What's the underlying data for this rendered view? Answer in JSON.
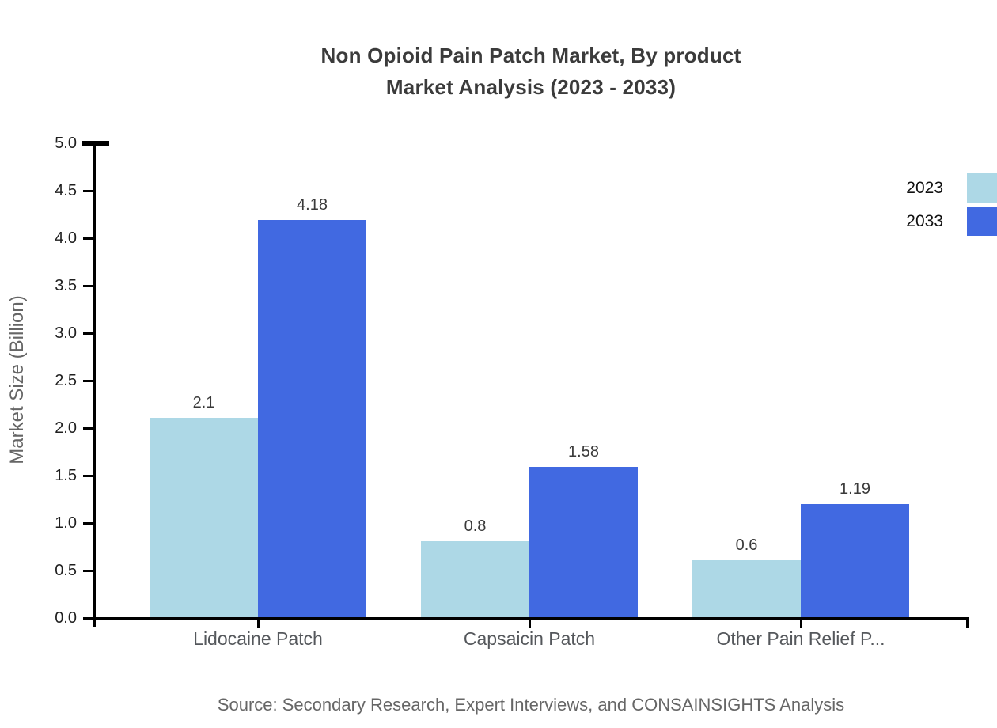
{
  "title": {
    "line1": "Non Opioid Pain Patch Market, By product",
    "line2": "Market Analysis (2023 - 2033)"
  },
  "y_axis": {
    "label": "Market Size (Billion)",
    "min": 0,
    "max": 5,
    "step": 0.5
  },
  "x_axis": {
    "categories": [
      "Lidocaine Patch",
      "Capsaicin Patch",
      "Other Pain Relief P..."
    ]
  },
  "legend": {
    "position": "top-right",
    "items": [
      {
        "label": "2023",
        "color": "#add8e6"
      },
      {
        "label": "2033",
        "color": "#4169e1"
      }
    ]
  },
  "source_note": "Source: Secondary Research, Expert Interviews, and CONSAINSIGHTS Analysis",
  "colors": {
    "background": "#ffffff",
    "axis": "#000000",
    "title_text": "#3b3b3b",
    "tick_text": "#1f1f1f",
    "category_text": "#55585c",
    "value_text": "#3a3a3a",
    "muted_text": "#666666",
    "series_2023": "#add8e6",
    "series_2033": "#4169e1"
  },
  "chart_data": {
    "type": "bar",
    "title": "Non Opioid Pain Patch Market, By product Market Analysis (2023 - 2033)",
    "categories": [
      "Lidocaine Patch",
      "Capsaicin Patch",
      "Other Pain Relief P..."
    ],
    "series": [
      {
        "name": "2023",
        "color": "#add8e6",
        "values": [
          2.1,
          0.8,
          0.6
        ]
      },
      {
        "name": "2033",
        "color": "#4169e1",
        "values": [
          4.18,
          1.58,
          1.19
        ]
      }
    ],
    "value_labels": [
      [
        "2.1",
        "0.8",
        "0.6"
      ],
      [
        "4.18",
        "1.58",
        "1.19"
      ]
    ],
    "xlabel": "",
    "ylabel": "Market Size (Billion)",
    "ylim": [
      0,
      5
    ],
    "ytick_step": 0.5,
    "ytick_labels": [
      "0.0",
      "0.5",
      "1.0",
      "1.5",
      "2.0",
      "2.5",
      "3.0",
      "3.5",
      "4.0",
      "4.5",
      "5.0"
    ],
    "grid": false,
    "legend_position": "top-right",
    "source": "Source: Secondary Research, Expert Interviews, and CONSAINSIGHTS Analysis"
  }
}
